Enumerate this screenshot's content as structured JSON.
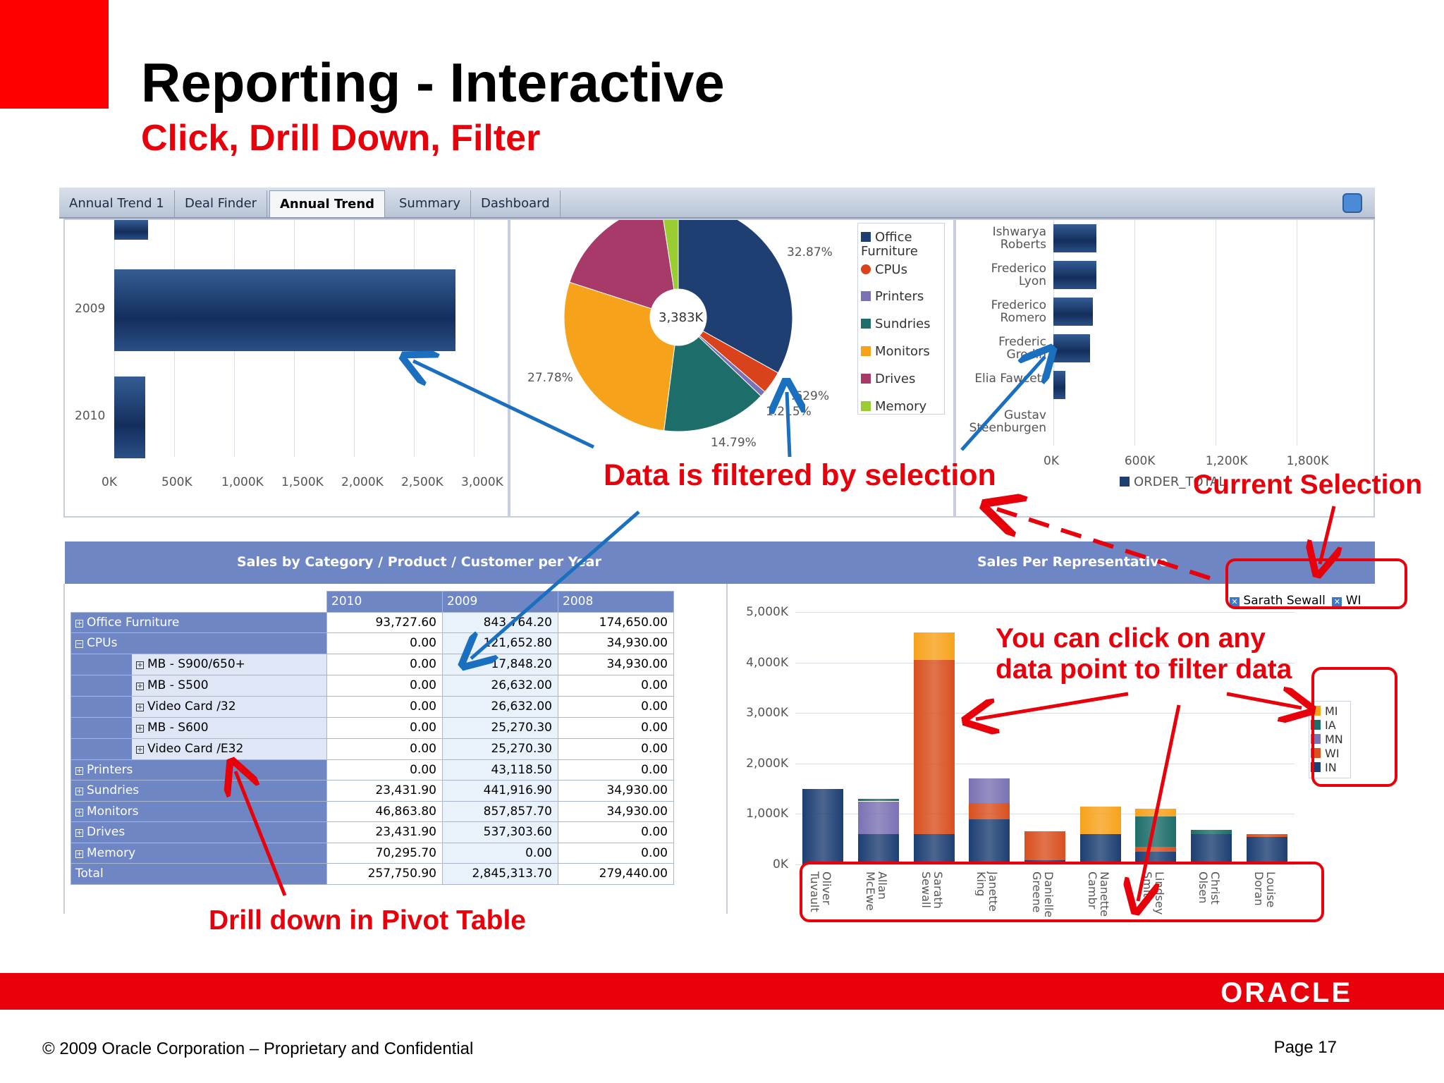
{
  "slide": {
    "title": "Reporting - Interactive",
    "subtitle": "Click, Drill Down, Filter"
  },
  "tabs": [
    {
      "label": "Annual Trend 1",
      "active": false
    },
    {
      "label": "Deal Finder",
      "active": false
    },
    {
      "label": "Annual Trend",
      "active": true
    },
    {
      "label": "Summary",
      "active": false
    },
    {
      "label": "Dashboard",
      "active": false
    }
  ],
  "year_bar_chart": {
    "categories": [
      "2009",
      "2010"
    ],
    "values": [
      2845313.7,
      257750.9
    ],
    "x_ticks": [
      "0K",
      "500K",
      "1,000K",
      "1,500K",
      "2,000K",
      "2,500K",
      "3,000K"
    ],
    "xlim": [
      0,
      3000000
    ]
  },
  "pie_chart": {
    "center_label": "3,383K",
    "slice_labels": [
      "32.87%",
      "27.78%",
      "14.79%",
      "1.215%",
      ".629%"
    ],
    "legend": [
      {
        "name": "Office Furniture",
        "color": "#1f3f73"
      },
      {
        "name": "CPUs",
        "color": "#d9421a"
      },
      {
        "name": "Printers",
        "color": "#7a72b4"
      },
      {
        "name": "Sundries",
        "color": "#1d6d6a"
      },
      {
        "name": "Monitors",
        "color": "#f7a21b"
      },
      {
        "name": "Drives",
        "color": "#a83a6a"
      },
      {
        "name": "Memory",
        "color": "#9acd32"
      }
    ]
  },
  "rep_bar_chart": {
    "categories": [
      "Ishwarya Roberts",
      "Frederico Lyon",
      "Frederico Romero",
      "Frederic Grodin",
      "Elia Fawcett",
      "Gustav Steenburgen"
    ],
    "values": [
      320000,
      320000,
      290000,
      270000,
      90000,
      0
    ],
    "x_ticks": [
      "0K",
      "600K",
      "1,200K",
      "1,800K"
    ],
    "xlim": [
      0,
      2100000
    ],
    "legend": "ORDER_TOTAL"
  },
  "annotations": {
    "filtered": "Data is filtered by selection",
    "current_selection": "Current Selection",
    "click_line1": "You can click on any",
    "click_line2": "data point to filter data",
    "drill": "Drill down in Pivot Table"
  },
  "section_titles": {
    "left": "Sales by Category / Product / Customer per Year",
    "right": "Sales Per Representative"
  },
  "pivot": {
    "columns": [
      "2010",
      "2009",
      "2008"
    ],
    "rows": [
      {
        "label": "Office Furniture",
        "level": 0,
        "expander": "+",
        "values": [
          "93,727.60",
          "843,764.20",
          "174,650.00"
        ]
      },
      {
        "label": "CPUs",
        "level": 0,
        "expander": "-",
        "values": [
          "0.00",
          "121,652.80",
          "34,930.00"
        ]
      },
      {
        "label": "MB - S900/650+",
        "level": 1,
        "expander": "+",
        "values": [
          "0.00",
          "17,848.20",
          "34,930.00"
        ]
      },
      {
        "label": "MB - S500",
        "level": 1,
        "expander": "+",
        "values": [
          "0.00",
          "26,632.00",
          "0.00"
        ]
      },
      {
        "label": "Video Card /32",
        "level": 1,
        "expander": "+",
        "values": [
          "0.00",
          "26,632.00",
          "0.00"
        ]
      },
      {
        "label": "MB - S600",
        "level": 1,
        "expander": "+",
        "values": [
          "0.00",
          "25,270.30",
          "0.00"
        ]
      },
      {
        "label": "Video Card /E32",
        "level": 1,
        "expander": "+",
        "values": [
          "0.00",
          "25,270.30",
          "0.00"
        ]
      },
      {
        "label": "Printers",
        "level": 0,
        "expander": "+",
        "values": [
          "0.00",
          "43,118.50",
          "0.00"
        ]
      },
      {
        "label": "Sundries",
        "level": 0,
        "expander": "+",
        "values": [
          "23,431.90",
          "441,916.90",
          "34,930.00"
        ]
      },
      {
        "label": "Monitors",
        "level": 0,
        "expander": "+",
        "values": [
          "46,863.80",
          "857,857.70",
          "34,930.00"
        ]
      },
      {
        "label": "Drives",
        "level": 0,
        "expander": "+",
        "values": [
          "23,431.90",
          "537,303.60",
          "0.00"
        ]
      },
      {
        "label": "Memory",
        "level": 0,
        "expander": "+",
        "values": [
          "70,295.70",
          "0.00",
          "0.00"
        ]
      }
    ],
    "total": {
      "label": "Total",
      "values": [
        "257,750.90",
        "2,845,313.70",
        "279,440.00"
      ]
    }
  },
  "filter_chips": [
    "Sarath Sewall",
    "WI"
  ],
  "stacked_chart": {
    "y_ticks": [
      "5,000K",
      "4,000K",
      "3,000K",
      "2,000K",
      "1,000K",
      "0K"
    ],
    "ylim": [
      0,
      5000000
    ],
    "categories": [
      "Oliver Tuvault",
      "Allan McEwe",
      "Sarath Sewall",
      "Janette King",
      "Danielle Greene",
      "Nanette Cambr",
      "Lindsey Smith",
      "Christ Olsen",
      "Louise Doran"
    ],
    "series": [
      {
        "name": "IN",
        "color": "#1d3f73",
        "values": [
          1500000,
          600000,
          600000,
          900000,
          80000,
          600000,
          250000,
          600000,
          550000
        ]
      },
      {
        "name": "WI",
        "color": "#d9501e",
        "values": [
          0,
          0,
          3450000,
          320000,
          580000,
          0,
          100000,
          0,
          50000
        ]
      },
      {
        "name": "MN",
        "color": "#7a72b4",
        "values": [
          0,
          650000,
          0,
          480000,
          0,
          0,
          0,
          0,
          0
        ]
      },
      {
        "name": "IA",
        "color": "#1d6d6a",
        "values": [
          0,
          50000,
          0,
          0,
          0,
          0,
          600000,
          80000,
          0
        ]
      },
      {
        "name": "MI",
        "color": "#f7a21b",
        "values": [
          0,
          0,
          550000,
          0,
          0,
          550000,
          150000,
          0,
          0
        ]
      }
    ],
    "legend": [
      "MI",
      "IA",
      "MN",
      "WI",
      "IN"
    ]
  },
  "brand": "ORACLE",
  "footer": {
    "copyright": "© 2009 Oracle Corporation – Proprietary and Confidential",
    "page": "Page 17"
  }
}
